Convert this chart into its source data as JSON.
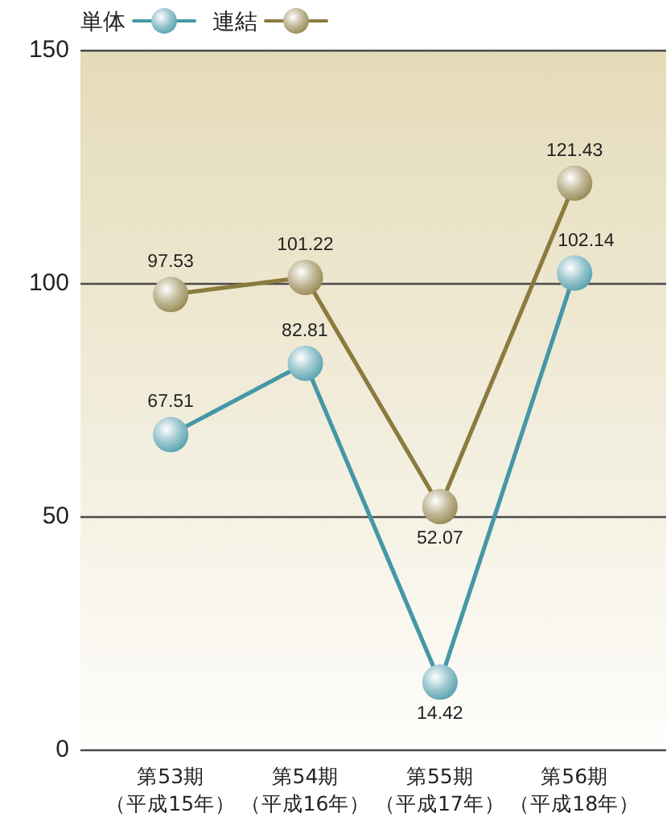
{
  "chart_data": {
    "type": "line",
    "categories": [
      "第53期（平成15年）",
      "第54期（平成16年）",
      "第55期（平成17年）",
      "第56期（平成18年）"
    ],
    "series": [
      {
        "name": "単体",
        "color": "#4597a6",
        "values": [
          67.51,
          82.81,
          14.42,
          102.14
        ]
      },
      {
        "name": "連結",
        "color": "#8b7b3f",
        "values": [
          97.53,
          101.22,
          52.07,
          121.43
        ]
      }
    ],
    "ylim": [
      0,
      150
    ],
    "yticks": [
      0,
      50,
      100,
      150
    ],
    "grid": "y",
    "legend": "top left",
    "marker": "circle",
    "line_style": "solid",
    "data_labels": true
  }
}
